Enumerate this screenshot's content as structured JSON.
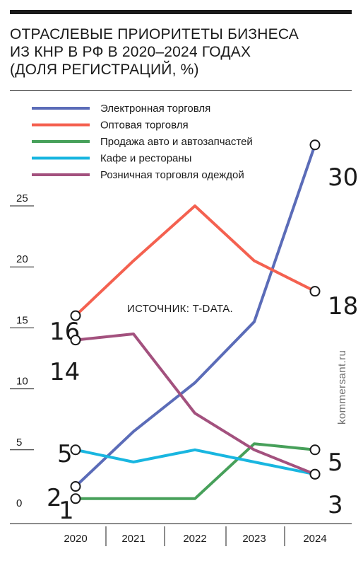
{
  "title_lines": [
    "ОТРАСЛЕВЫЕ ПРИОРИТЕТЫ БИЗНЕСА",
    "ИЗ КНР В РФ В 2020–2024 ГОДАХ",
    "(ДОЛЯ РЕГИСТРАЦИЙ, %)"
  ],
  "source": "ИСТОЧНИК: T-DATA.",
  "credit": "kommersant.ru",
  "chart_data": {
    "type": "line",
    "title": "ОТРАСЛЕВЫЕ ПРИОРИТЕТЫ БИЗНЕСА ИЗ КНР В РФ В 2020–2024 ГОДАХ (ДОЛЯ РЕГИСТРАЦИЙ, %)",
    "x": [
      "2020",
      "2021",
      "2022",
      "2023",
      "2024"
    ],
    "yticks": [
      0,
      5,
      10,
      15,
      20,
      25
    ],
    "ylim": [
      0,
      30
    ],
    "grid": false,
    "legend_position": "top",
    "series": [
      {
        "name": "Электронная торговля",
        "color": "#5b6cb8",
        "values": [
          2,
          6.5,
          10.5,
          15.5,
          30
        ],
        "start_label": "2",
        "end_label": "30"
      },
      {
        "name": "Оптовая торговля",
        "color": "#f46150",
        "values": [
          16,
          20.5,
          25,
          20.5,
          18
        ],
        "start_label": "16",
        "end_label": "18"
      },
      {
        "name": "Продажа авто и автозапчастей",
        "color": "#47a05a",
        "values": [
          1,
          1,
          1,
          5.5,
          5
        ],
        "start_label": "1",
        "end_label": "5"
      },
      {
        "name": "Кафе и рестораны",
        "color": "#19b6e0",
        "values": [
          5,
          4,
          5,
          4,
          3
        ],
        "start_label": "5",
        "end_label": null
      },
      {
        "name": "Розничная торговля одеждой",
        "color": "#a3517e",
        "values": [
          14,
          14.5,
          8,
          5,
          3
        ],
        "start_label": "14",
        "end_label": "3"
      }
    ]
  }
}
